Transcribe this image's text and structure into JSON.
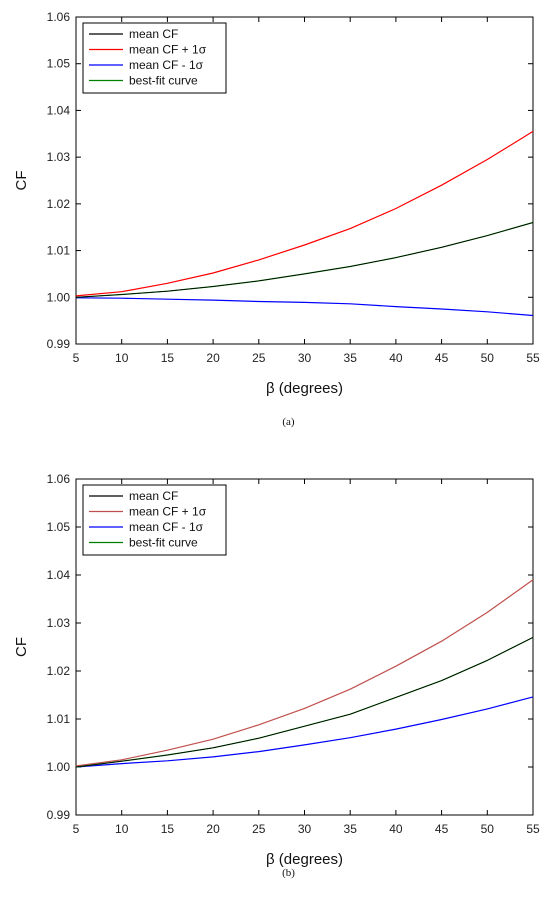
{
  "chart_data": [
    {
      "type": "line",
      "caption": "(a)",
      "xlabel": "β (degrees)",
      "ylabel": "CF",
      "xlim": [
        5,
        55
      ],
      "ylim": [
        0.99,
        1.06
      ],
      "xticks": [
        "5",
        "10",
        "15",
        "20",
        "25",
        "30",
        "35",
        "40",
        "45",
        "50",
        "55"
      ],
      "yticks": [
        "0.99",
        "1.00",
        "1.01",
        "1.02",
        "1.03",
        "1.04",
        "1.05",
        "1.06"
      ],
      "grid": false,
      "legend_position": "top-left",
      "x": [
        5,
        10,
        15,
        20,
        25,
        30,
        35,
        40,
        45,
        50,
        55
      ],
      "series": [
        {
          "name": "mean CF",
          "color": "#000000",
          "values": [
            1.0,
            1.0006,
            1.0013,
            1.0023,
            1.0035,
            1.005,
            1.0066,
            1.0085,
            1.0107,
            1.0132,
            1.016
          ]
        },
        {
          "name": "mean CF + 1σ",
          "color": "#ff0000",
          "values": [
            1.0003,
            1.0012,
            1.003,
            1.0052,
            1.008,
            1.0112,
            1.0147,
            1.019,
            1.024,
            1.0295,
            1.0355
          ]
        },
        {
          "name": "mean CF - 1σ",
          "color": "#0000ff",
          "values": [
            0.9999,
            0.9998,
            0.9996,
            0.9994,
            0.9991,
            0.9989,
            0.9986,
            0.998,
            0.9975,
            0.9969,
            0.9961
          ]
        },
        {
          "name": "best-fit curve",
          "color": "#008000",
          "values": [
            1.0,
            1.0006,
            1.0013,
            1.0023,
            1.0035,
            1.005,
            1.0066,
            1.0085,
            1.0107,
            1.0132,
            1.016
          ]
        }
      ]
    },
    {
      "type": "line",
      "caption": "(b)",
      "xlabel": "β (degrees)",
      "ylabel": "CF",
      "xlim": [
        5,
        55
      ],
      "ylim": [
        0.99,
        1.06
      ],
      "xticks": [
        "5",
        "10",
        "15",
        "20",
        "25",
        "30",
        "35",
        "40",
        "45",
        "50",
        "55"
      ],
      "yticks": [
        "0.99",
        "1.00",
        "1.01",
        "1.02",
        "1.03",
        "1.04",
        "1.05",
        "1.06"
      ],
      "grid": false,
      "legend_position": "top-left",
      "x": [
        5,
        10,
        15,
        20,
        25,
        30,
        35,
        40,
        45,
        50,
        55
      ],
      "series": [
        {
          "name": "mean CF",
          "color": "#000000",
          "values": [
            1.0,
            1.0012,
            1.0025,
            1.004,
            1.006,
            1.0085,
            1.011,
            1.0145,
            1.018,
            1.0222,
            1.027
          ]
        },
        {
          "name": "mean CF + 1σ",
          "color": "#c0504d",
          "values": [
            1.0002,
            1.0015,
            1.0035,
            1.0058,
            1.0088,
            1.0122,
            1.0162,
            1.021,
            1.0262,
            1.0322,
            1.039
          ]
        },
        {
          "name": "mean CF - 1σ",
          "color": "#0000ff",
          "values": [
            1.0,
            1.0007,
            1.0013,
            1.0021,
            1.0032,
            1.0046,
            1.0061,
            1.0079,
            1.0099,
            1.0121,
            1.0146
          ]
        },
        {
          "name": "best-fit curve",
          "color": "#008000",
          "values": [
            1.0,
            1.0012,
            1.0025,
            1.004,
            1.006,
            1.0085,
            1.011,
            1.0145,
            1.018,
            1.0222,
            1.027
          ]
        }
      ]
    }
  ]
}
